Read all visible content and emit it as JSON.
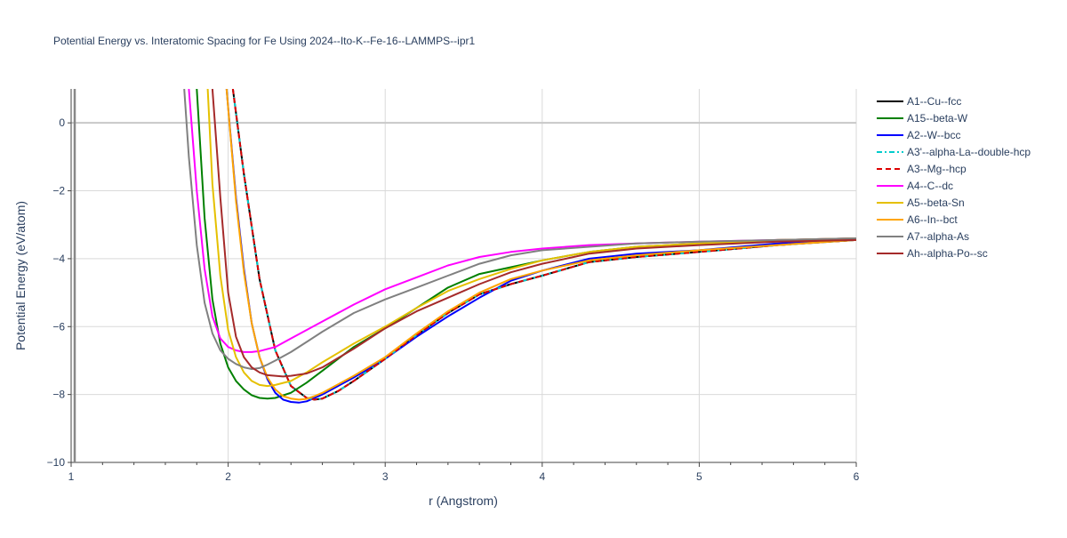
{
  "chart_data": {
    "type": "line",
    "title": "Potential Energy vs. Interatomic Spacing for Fe Using 2024--Ito-K--Fe-16--LAMMPS--ipr1",
    "xlabel": "r (Angstrom)",
    "ylabel": "Potential Energy (eV/atom)",
    "xlim": [
      1,
      6
    ],
    "ylim": [
      -10,
      1
    ],
    "x_ticks": [
      1,
      2,
      3,
      4,
      5,
      6
    ],
    "y_ticks": [
      0,
      -2,
      -4,
      -6,
      -8,
      -10
    ],
    "x_tick_labels": [
      "1",
      "2",
      "3",
      "4",
      "5",
      "6"
    ],
    "y_tick_labels": [
      "0",
      "−2",
      "−4",
      "−6",
      "−8",
      "−10"
    ],
    "grid": true,
    "legend_position": "right",
    "series": [
      {
        "name": "A1--Cu--fcc",
        "color": "#000000",
        "dash": "solid",
        "x": [
          2.03,
          2.1,
          2.2,
          2.3,
          2.4,
          2.5,
          2.55,
          2.6,
          2.7,
          2.8,
          3.0,
          3.2,
          3.4,
          3.6,
          3.8,
          4.0,
          4.3,
          4.6,
          5.0,
          5.5,
          6.0
        ],
        "y": [
          1.0,
          -1.5,
          -4.6,
          -6.7,
          -7.75,
          -8.1,
          -8.15,
          -8.12,
          -7.9,
          -7.6,
          -6.95,
          -6.25,
          -5.6,
          -5.05,
          -4.75,
          -4.5,
          -4.1,
          -3.95,
          -3.8,
          -3.6,
          -3.45
        ]
      },
      {
        "name": "A15--beta-W",
        "color": "#008000",
        "dash": "solid",
        "x": [
          1.8,
          1.85,
          1.9,
          1.95,
          2.0,
          2.05,
          2.1,
          2.15,
          2.2,
          2.25,
          2.3,
          2.4,
          2.5,
          2.6,
          2.8,
          3.0,
          3.2,
          3.4,
          3.6,
          3.8,
          4.0,
          4.3,
          4.6,
          5.0,
          5.5,
          6.0
        ],
        "y": [
          1.0,
          -2.8,
          -5.2,
          -6.5,
          -7.2,
          -7.6,
          -7.85,
          -8.02,
          -8.1,
          -8.12,
          -8.1,
          -7.95,
          -7.65,
          -7.3,
          -6.6,
          -6.05,
          -5.45,
          -4.85,
          -4.45,
          -4.25,
          -4.05,
          -3.8,
          -3.65,
          -3.55,
          -3.45,
          -3.4
        ]
      },
      {
        "name": "A2--W--bcc",
        "color": "#0000ff",
        "dash": "solid",
        "x": [
          1.99,
          2.05,
          2.1,
          2.15,
          2.2,
          2.25,
          2.3,
          2.35,
          2.4,
          2.45,
          2.5,
          2.6,
          2.8,
          3.0,
          3.2,
          3.4,
          3.6,
          3.8,
          4.0,
          4.3,
          4.6,
          5.0,
          5.5,
          6.0
        ],
        "y": [
          1.0,
          -2.2,
          -4.3,
          -5.9,
          -6.9,
          -7.55,
          -7.95,
          -8.15,
          -8.22,
          -8.24,
          -8.2,
          -8.0,
          -7.5,
          -6.95,
          -6.3,
          -5.7,
          -5.15,
          -4.65,
          -4.35,
          -4.0,
          -3.85,
          -3.75,
          -3.55,
          -3.45
        ]
      },
      {
        "name": "A3'--alpha-La--double-hcp",
        "color": "#00cccc",
        "dash": "dashdot",
        "x": [
          2.03,
          2.1,
          2.2,
          2.3,
          2.4,
          2.5,
          2.55,
          2.6,
          2.7,
          2.8,
          3.0,
          3.2,
          3.4,
          3.6,
          3.8,
          4.0,
          4.3,
          4.6,
          5.0,
          5.5,
          6.0
        ],
        "y": [
          1.0,
          -1.5,
          -4.6,
          -6.7,
          -7.75,
          -8.1,
          -8.15,
          -8.12,
          -7.9,
          -7.6,
          -6.95,
          -6.25,
          -5.6,
          -5.05,
          -4.75,
          -4.5,
          -4.1,
          -3.95,
          -3.8,
          -3.6,
          -3.45
        ]
      },
      {
        "name": "A3--Mg--hcp",
        "color": "#dd0000",
        "dash": "dash",
        "x": [
          2.03,
          2.1,
          2.2,
          2.3,
          2.4,
          2.5,
          2.55,
          2.6,
          2.7,
          2.8,
          3.0,
          3.2,
          3.4,
          3.6,
          3.8,
          4.0,
          4.3,
          4.6,
          5.0,
          5.5,
          6.0
        ],
        "y": [
          1.0,
          -1.5,
          -4.6,
          -6.7,
          -7.75,
          -8.1,
          -8.15,
          -8.12,
          -7.9,
          -7.6,
          -6.95,
          -6.25,
          -5.6,
          -5.05,
          -4.75,
          -4.5,
          -4.1,
          -3.95,
          -3.8,
          -3.6,
          -3.45
        ]
      },
      {
        "name": "A4--C--dc",
        "color": "#ff00ff",
        "dash": "solid",
        "x": [
          1.75,
          1.8,
          1.85,
          1.9,
          1.95,
          2.0,
          2.05,
          2.1,
          2.15,
          2.2,
          2.3,
          2.4,
          2.6,
          2.8,
          3.0,
          3.2,
          3.4,
          3.6,
          3.8,
          4.0,
          4.3,
          4.6,
          5.0,
          5.5,
          6.0
        ],
        "y": [
          1.0,
          -2.0,
          -4.3,
          -5.7,
          -6.35,
          -6.6,
          -6.7,
          -6.75,
          -6.75,
          -6.72,
          -6.6,
          -6.35,
          -5.85,
          -5.35,
          -4.9,
          -4.55,
          -4.2,
          -3.95,
          -3.8,
          -3.7,
          -3.6,
          -3.55,
          -3.5,
          -3.45,
          -3.4
        ]
      },
      {
        "name": "A5--beta-Sn",
        "color": "#e5c000",
        "dash": "solid",
        "x": [
          1.87,
          1.9,
          1.95,
          2.0,
          2.05,
          2.1,
          2.15,
          2.2,
          2.25,
          2.3,
          2.4,
          2.5,
          2.6,
          2.8,
          3.0,
          3.2,
          3.4,
          3.6,
          3.8,
          4.0,
          4.3,
          4.6,
          5.0,
          5.5,
          6.0
        ],
        "y": [
          1.0,
          -1.8,
          -4.5,
          -6.1,
          -6.9,
          -7.35,
          -7.6,
          -7.72,
          -7.75,
          -7.72,
          -7.6,
          -7.35,
          -7.05,
          -6.5,
          -6.0,
          -5.45,
          -4.95,
          -4.6,
          -4.3,
          -4.05,
          -3.8,
          -3.65,
          -3.55,
          -3.45,
          -3.4
        ]
      },
      {
        "name": "A6--In--bct",
        "color": "#ffa500",
        "dash": "solid",
        "x": [
          1.99,
          2.05,
          2.1,
          2.15,
          2.2,
          2.25,
          2.3,
          2.35,
          2.4,
          2.45,
          2.5,
          2.55,
          2.6,
          2.8,
          3.0,
          3.2,
          3.4,
          3.6,
          3.8,
          4.0,
          4.3,
          4.6,
          5.0,
          5.5,
          6.0
        ],
        "y": [
          1.0,
          -2.3,
          -4.4,
          -5.9,
          -6.9,
          -7.5,
          -7.85,
          -8.05,
          -8.12,
          -8.15,
          -8.13,
          -8.05,
          -7.95,
          -7.45,
          -6.9,
          -6.2,
          -5.55,
          -5.0,
          -4.6,
          -4.35,
          -4.05,
          -3.9,
          -3.75,
          -3.6,
          -3.45
        ]
      },
      {
        "name": "A7--alpha-As",
        "color": "#808080",
        "dash": "solid",
        "x": [
          1.72,
          1.75,
          1.8,
          1.85,
          1.9,
          1.95,
          2.0,
          2.05,
          2.1,
          2.15,
          2.2,
          2.25,
          2.3,
          2.4,
          2.5,
          2.6,
          2.8,
          3.0,
          3.2,
          3.4,
          3.6,
          3.8,
          4.0,
          4.3,
          4.6,
          5.0,
          5.5,
          6.0
        ],
        "y": [
          1.0,
          -1.0,
          -3.6,
          -5.3,
          -6.2,
          -6.7,
          -6.95,
          -7.1,
          -7.2,
          -7.25,
          -7.22,
          -7.12,
          -7.0,
          -6.75,
          -6.45,
          -6.15,
          -5.6,
          -5.2,
          -4.85,
          -4.5,
          -4.15,
          -3.9,
          -3.75,
          -3.65,
          -3.55,
          -3.5,
          -3.45,
          -3.4
        ]
      },
      {
        "name": "Ah--alpha-Po--sc",
        "color": "#a52a2a",
        "dash": "solid",
        "x": [
          1.9,
          1.95,
          2.0,
          2.05,
          2.1,
          2.15,
          2.2,
          2.25,
          2.3,
          2.35,
          2.4,
          2.5,
          2.6,
          2.8,
          3.0,
          3.2,
          3.4,
          3.6,
          3.8,
          4.0,
          4.3,
          4.6,
          5.0,
          5.5,
          6.0
        ],
        "y": [
          1.0,
          -2.2,
          -5.0,
          -6.3,
          -6.9,
          -7.2,
          -7.35,
          -7.43,
          -7.45,
          -7.47,
          -7.45,
          -7.38,
          -7.2,
          -6.65,
          -6.05,
          -5.55,
          -5.15,
          -4.75,
          -4.4,
          -4.15,
          -3.85,
          -3.7,
          -3.6,
          -3.5,
          -3.45
        ]
      }
    ]
  }
}
